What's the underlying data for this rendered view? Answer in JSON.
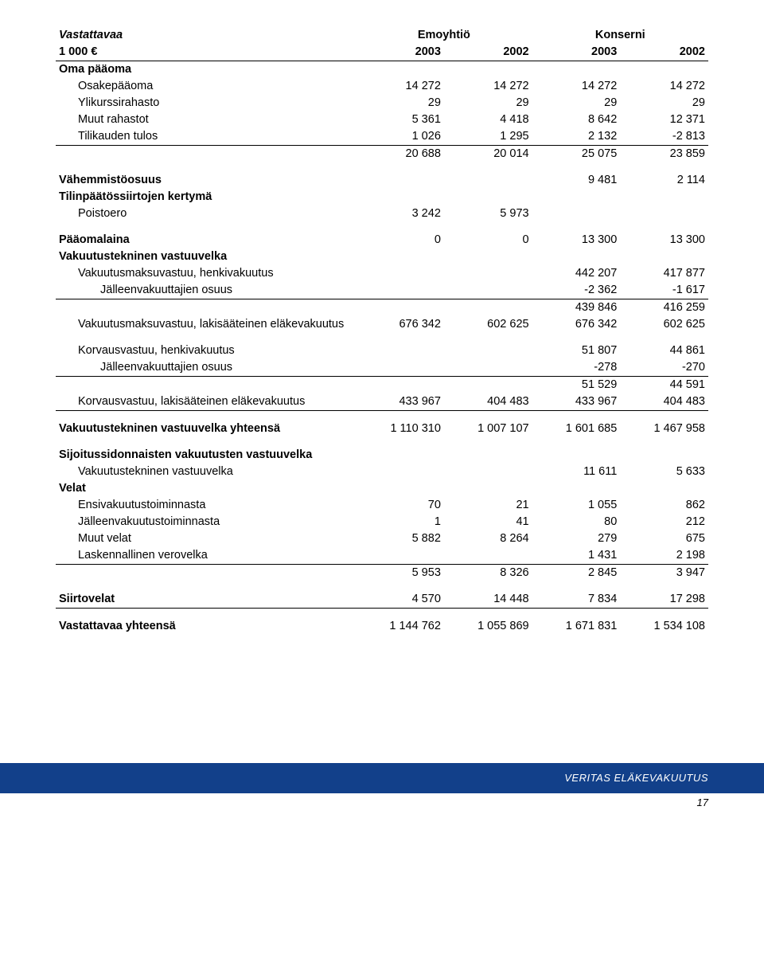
{
  "header": {
    "title_left": "Vastattavaa",
    "title_mid": "Emoyhtiö",
    "title_right": "Konserni",
    "unit": "1 000 €",
    "years": [
      "2003",
      "2002",
      "2003",
      "2002"
    ]
  },
  "sections": [
    {
      "label": "Oma pääoma",
      "bold": true
    },
    {
      "label": "Osakepääoma",
      "ind": 1,
      "vals": [
        "14 272",
        "14 272",
        "14 272",
        "14 272"
      ]
    },
    {
      "label": "Ylikurssirahasto",
      "ind": 1,
      "vals": [
        "29",
        "29",
        "29",
        "29"
      ]
    },
    {
      "label": "Muut rahastot",
      "ind": 1,
      "vals": [
        "5 361",
        "4 418",
        "8 642",
        "12 371"
      ]
    },
    {
      "label": "Tilikauden tulos",
      "ind": 1,
      "vals": [
        "1 026",
        "1 295",
        "2 132",
        "-2 813"
      ],
      "rule_bottom": true
    },
    {
      "label": "",
      "vals": [
        "20 688",
        "20 014",
        "25 075",
        "23 859"
      ]
    },
    {
      "spacer": true
    },
    {
      "label": "Vähemmistöosuus",
      "bold": true,
      "vals": [
        "",
        "",
        "9 481",
        "2 114"
      ]
    },
    {
      "label": "Tilinpäätössiirtojen kertymä",
      "bold": true
    },
    {
      "label": "Poistoero",
      "ind": 1,
      "vals": [
        "3 242",
        "5 973",
        "",
        ""
      ]
    },
    {
      "spacer": true
    },
    {
      "label": "Pääomalaina",
      "bold": true,
      "vals": [
        "0",
        "0",
        "13 300",
        "13 300"
      ]
    },
    {
      "label": "Vakuutustekninen vastuuvelka",
      "bold": true
    },
    {
      "label": "Vakuutusmaksuvastuu, henkivakuutus",
      "ind": 1,
      "vals": [
        "",
        "",
        "442 207",
        "417 877"
      ]
    },
    {
      "label": "Jälleenvakuuttajien osuus",
      "ind": 2,
      "vals": [
        "",
        "",
        "-2 362",
        "-1 617"
      ],
      "rule_bottom": true
    },
    {
      "label": "",
      "vals": [
        "",
        "",
        "439 846",
        "416 259"
      ]
    },
    {
      "label": "Vakuutusmaksuvastuu, lakisääteinen eläkevakuutus",
      "ind": 1,
      "vals": [
        "676 342",
        "602 625",
        "676 342",
        "602 625"
      ]
    },
    {
      "spacer": true
    },
    {
      "label": "Korvausvastuu, henkivakuutus",
      "ind": 1,
      "vals": [
        "",
        "",
        "51 807",
        "44 861"
      ]
    },
    {
      "label": "Jälleenvakuuttajien osuus",
      "ind": 2,
      "vals": [
        "",
        "",
        "-278",
        "-270"
      ],
      "rule_bottom": true
    },
    {
      "label": "",
      "vals": [
        "",
        "",
        "51 529",
        "44 591"
      ]
    },
    {
      "label": "Korvausvastuu, lakisääteinen eläkevakuutus",
      "ind": 1,
      "vals": [
        "433 967",
        "404 483",
        "433 967",
        "404 483"
      ],
      "rule_bottom": true
    },
    {
      "spacer": true
    },
    {
      "label": "Vakuutustekninen vastuuvelka yhteensä",
      "bold": true,
      "vals": [
        "1 110 310",
        "1 007 107",
        "1 601 685",
        "1 467 958"
      ]
    },
    {
      "spacer": true
    },
    {
      "label": "Sijoitussidonnaisten vakuutusten vastuuvelka",
      "bold": true
    },
    {
      "label": "Vakuutustekninen vastuuvelka",
      "ind": 1,
      "vals": [
        "",
        "",
        "11 611",
        "5 633"
      ]
    },
    {
      "label": "Velat",
      "bold": true
    },
    {
      "label": "Ensivakuutustoiminnasta",
      "ind": 1,
      "vals": [
        "70",
        "21",
        "1 055",
        "862"
      ]
    },
    {
      "label": "Jälleenvakuutustoiminnasta",
      "ind": 1,
      "vals": [
        "1",
        "41",
        "80",
        "212"
      ]
    },
    {
      "label": "Muut velat",
      "ind": 1,
      "vals": [
        "5 882",
        "8 264",
        "279",
        "675"
      ]
    },
    {
      "label": "Laskennallinen verovelka",
      "ind": 1,
      "vals": [
        "",
        "",
        "1 431",
        "2 198"
      ],
      "rule_bottom": true
    },
    {
      "label": "",
      "vals": [
        "5 953",
        "8 326",
        "2 845",
        "3 947"
      ]
    },
    {
      "spacer": true
    },
    {
      "label": "Siirtovelat",
      "bold": true,
      "vals": [
        "4 570",
        "14 448",
        "7 834",
        "17 298"
      ],
      "rule_bottom": true
    },
    {
      "spacer": true
    },
    {
      "label": "Vastattavaa yhteensä",
      "bold": true,
      "vals": [
        "1 144 762",
        "1 055 869",
        "1 671 831",
        "1 534 108"
      ]
    }
  ],
  "footer": {
    "brand": "VERITAS ELÄKEVAKUUTUS",
    "page": "17"
  },
  "colors": {
    "footer_bg": "#12408a",
    "text": "#000000",
    "bg": "#ffffff"
  }
}
